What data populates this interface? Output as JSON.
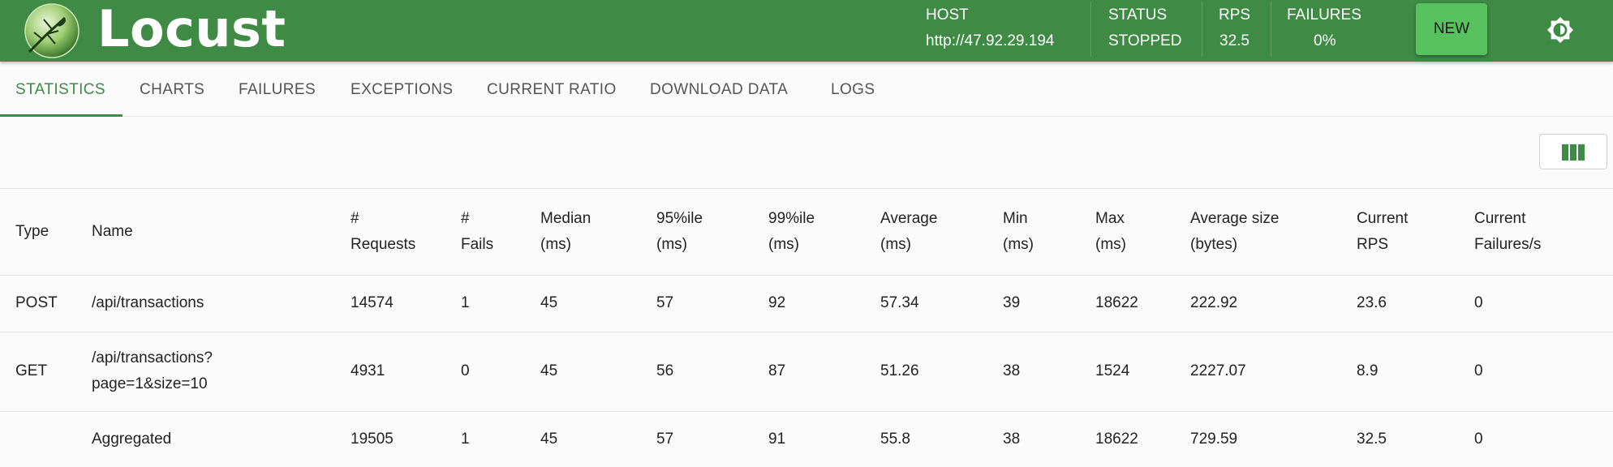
{
  "header": {
    "brand": "Locust",
    "host_label": "HOST",
    "host_value": "http://47.92.29.194",
    "status_label": "STATUS",
    "status_value": "STOPPED",
    "rps_label": "RPS",
    "rps_value": "32.5",
    "failures_label": "FAILURES",
    "failures_value": "0%",
    "new_button": "NEW",
    "brand_color": "#3f8a44",
    "button_color": "#57c25d"
  },
  "tabs": [
    {
      "label": "STATISTICS",
      "active": true
    },
    {
      "label": "CHARTS"
    },
    {
      "label": "FAILURES"
    },
    {
      "label": "EXCEPTIONS"
    },
    {
      "label": "CURRENT RATIO"
    },
    {
      "label": "DOWNLOAD DATA"
    },
    {
      "label": "LOGS"
    }
  ],
  "table": {
    "headers": [
      [
        "Type"
      ],
      [
        "Name"
      ],
      [
        "#",
        "Requests"
      ],
      [
        "#",
        "Fails"
      ],
      [
        "Median",
        "(ms)"
      ],
      [
        "95%ile",
        "(ms)"
      ],
      [
        "99%ile",
        "(ms)"
      ],
      [
        "Average",
        "(ms)"
      ],
      [
        "Min",
        "(ms)"
      ],
      [
        "Max",
        "(ms)"
      ],
      [
        "Average size",
        "(bytes)"
      ],
      [
        "Current",
        "RPS"
      ],
      [
        "Current",
        "Failures/s"
      ]
    ],
    "rows": [
      {
        "type": "POST",
        "name": [
          "/api/transactions"
        ],
        "requests": "14574",
        "fails": "1",
        "median": "45",
        "p95": "57",
        "p99": "92",
        "average": "57.34",
        "min": "39",
        "max": "18622",
        "avg_size": "222.92",
        "rps": "23.6",
        "failures_s": "0"
      },
      {
        "type": "GET",
        "name": [
          "/api/transactions?",
          "page=1&size=10"
        ],
        "requests": "4931",
        "fails": "0",
        "median": "45",
        "p95": "56",
        "p99": "87",
        "average": "51.26",
        "min": "38",
        "max": "1524",
        "avg_size": "2227.07",
        "rps": "8.9",
        "failures_s": "0"
      },
      {
        "type": "",
        "name": [
          "Aggregated"
        ],
        "requests": "19505",
        "fails": "1",
        "median": "45",
        "p95": "57",
        "p99": "91",
        "average": "55.8",
        "min": "38",
        "max": "18622",
        "avg_size": "729.59",
        "rps": "32.5",
        "failures_s": "0"
      }
    ]
  },
  "icons": {
    "logo": "locust-logo-icon",
    "theme_toggle": "brightness-icon",
    "columns": "view-column-icon"
  }
}
